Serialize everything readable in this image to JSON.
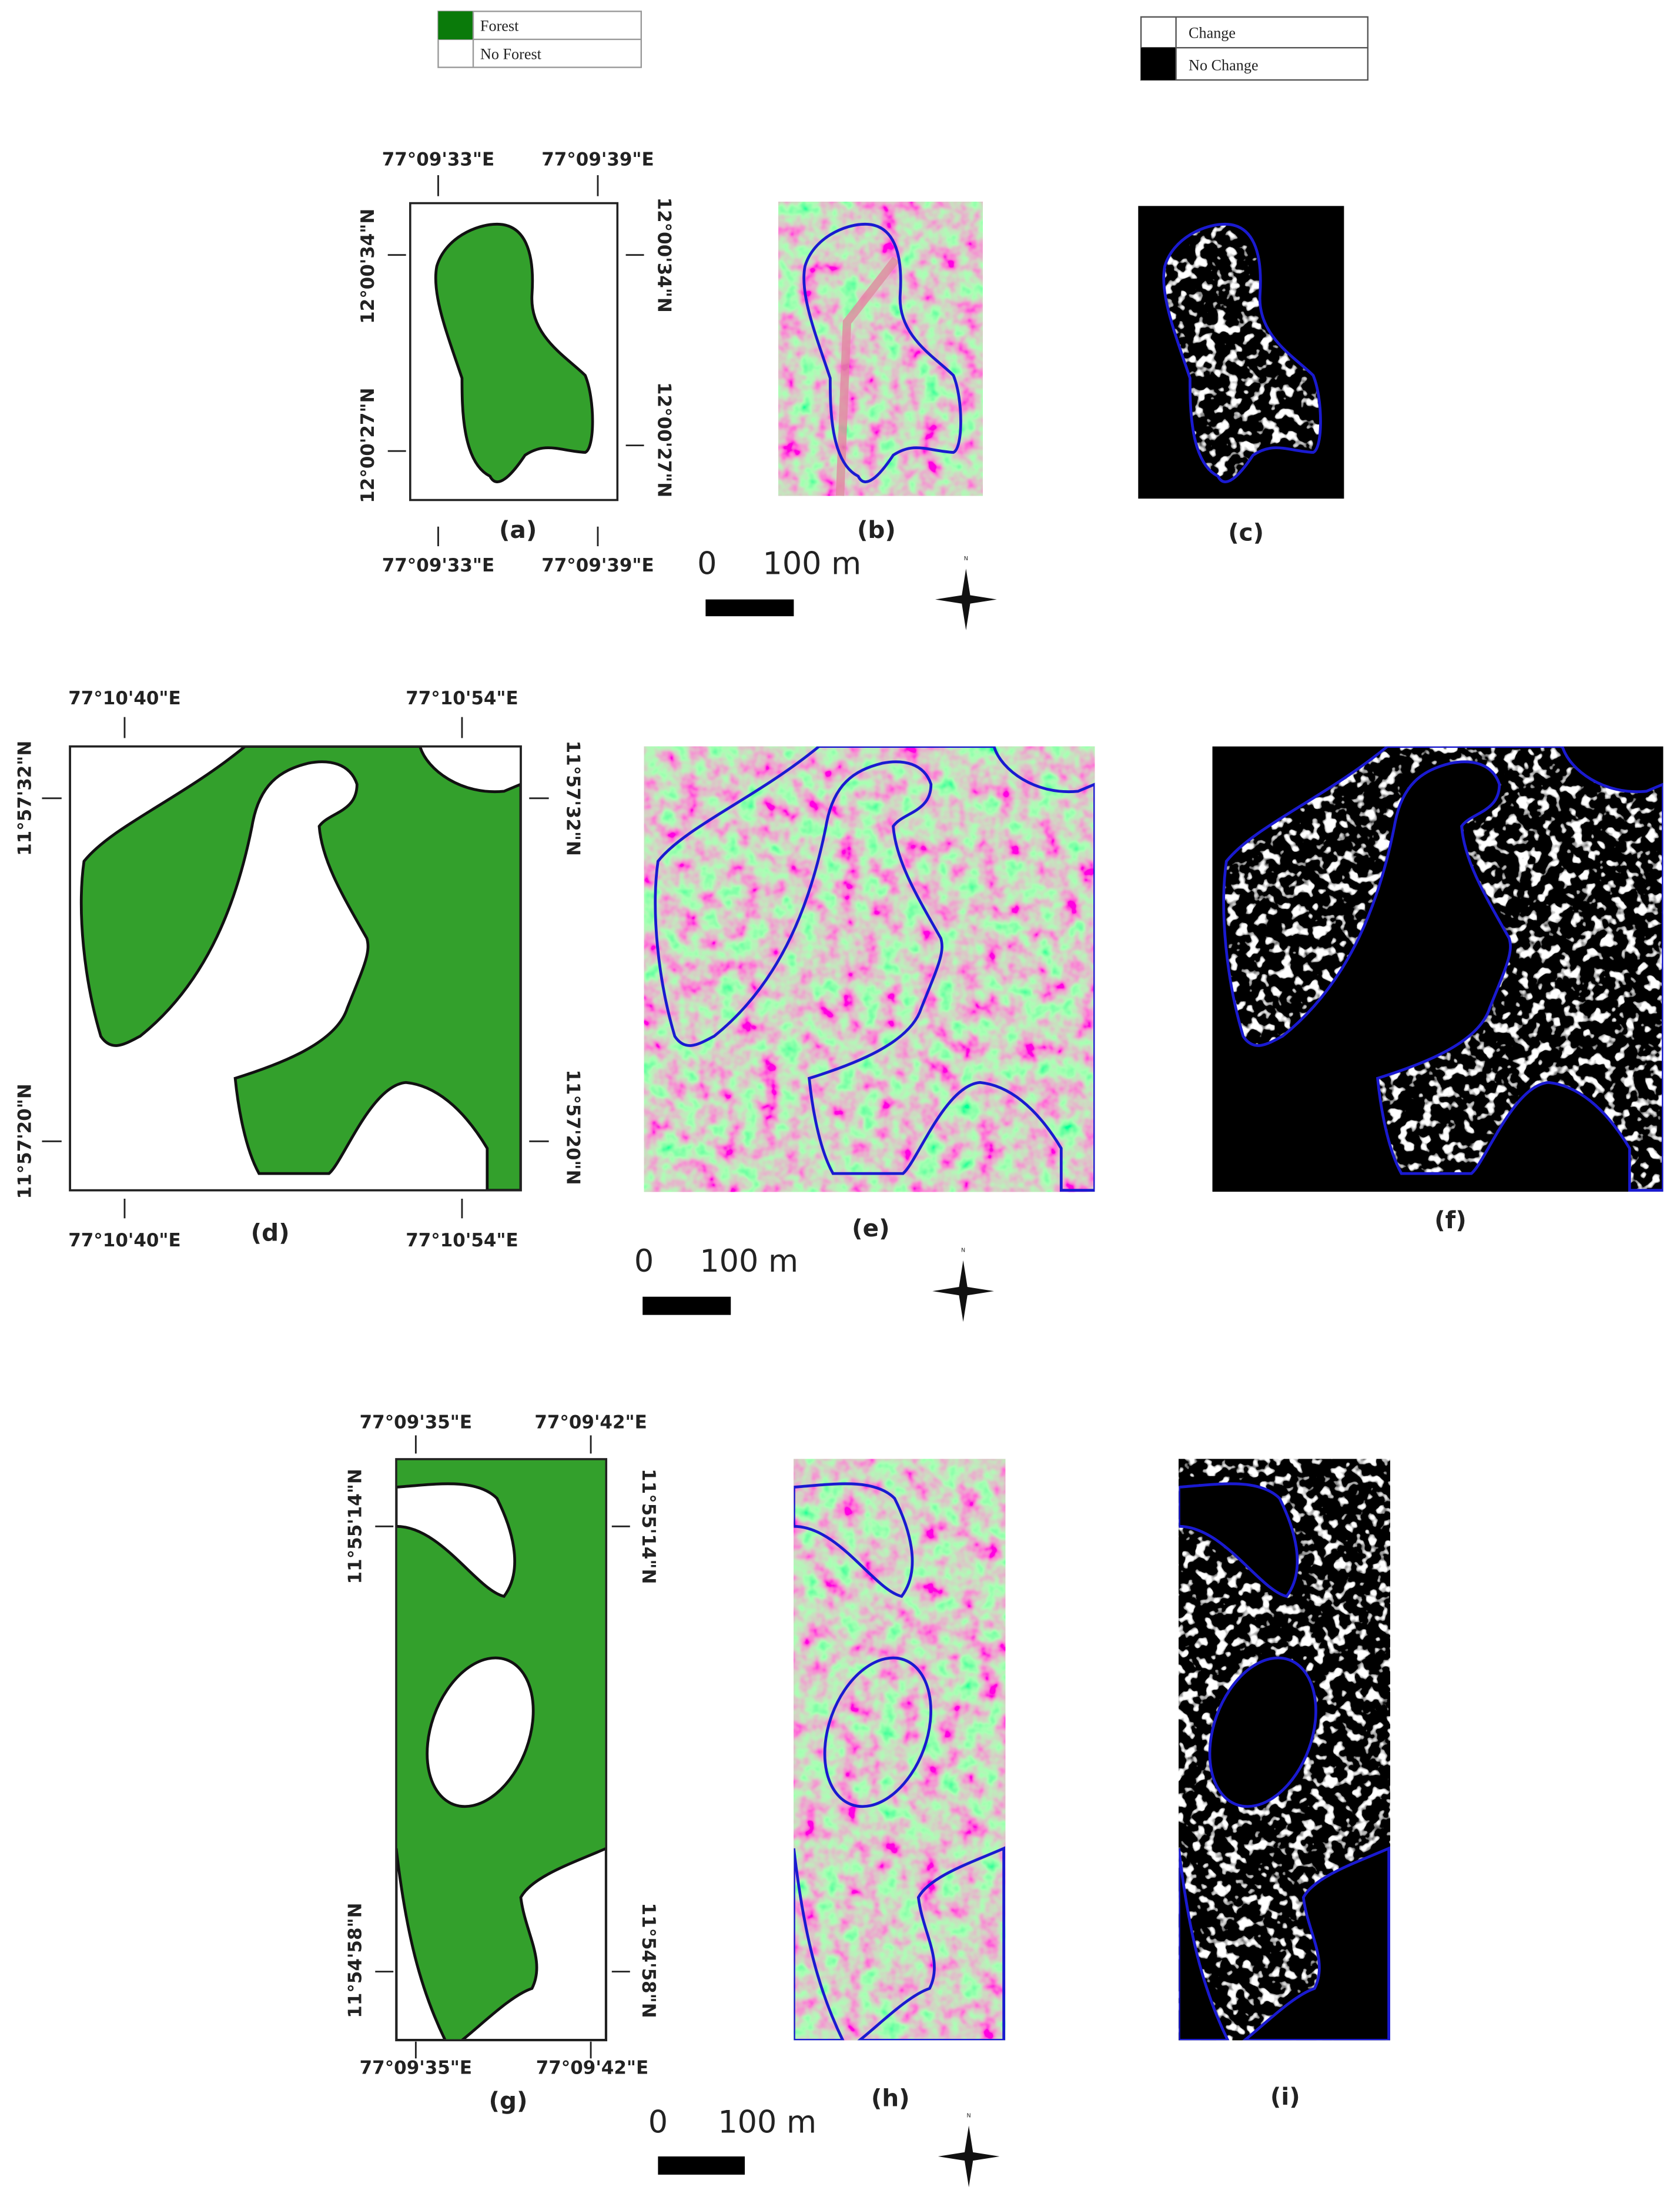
{
  "legend_forest": {
    "items": [
      "Forest",
      "No Forest"
    ]
  },
  "legend_change": {
    "items": [
      "Change",
      "No Change"
    ]
  },
  "rows": [
    {
      "top_labels": [
        "77°09'33\"E",
        "77°09'39\"E"
      ],
      "bottom_labels": [
        "77°09'33\"E",
        "77°09'39\"E"
      ],
      "left_labels": [
        "12°00'34\"N",
        "12°00'27\"N"
      ],
      "right_labels": [
        "12°00'34\"N",
        "12°00'27\"N"
      ],
      "captions": [
        "(a)",
        "(b)",
        "(c)"
      ],
      "scale": [
        "0",
        "100 m"
      ],
      "north": "N"
    },
    {
      "top_labels": [
        "77°10'40\"E",
        "77°10'54\"E"
      ],
      "bottom_labels": [
        "77°10'40\"E",
        "77°10'54\"E"
      ],
      "left_labels": [
        "11°57'32\"N",
        "11°57'20\"N"
      ],
      "right_labels": [
        "11°57'32\"N",
        "11°57'20\"N"
      ],
      "captions": [
        "(d)",
        "(e)",
        "(f)"
      ],
      "scale": [
        "0",
        "100 m"
      ],
      "north": "N"
    },
    {
      "top_labels": [
        "77°09'35\"E",
        "77°09'42\"E"
      ],
      "bottom_labels": [
        "77°09'35\"E",
        "77°09'42\"E"
      ],
      "left_labels": [
        "11°55'14\"N",
        "11°54'58\"N"
      ],
      "right_labels": [
        "11°55'14\"N",
        "11°54'58\"N"
      ],
      "captions": [
        "(g)",
        "(h)",
        "(i)"
      ],
      "scale": [
        "0",
        "100 m"
      ],
      "north": "N"
    }
  ]
}
